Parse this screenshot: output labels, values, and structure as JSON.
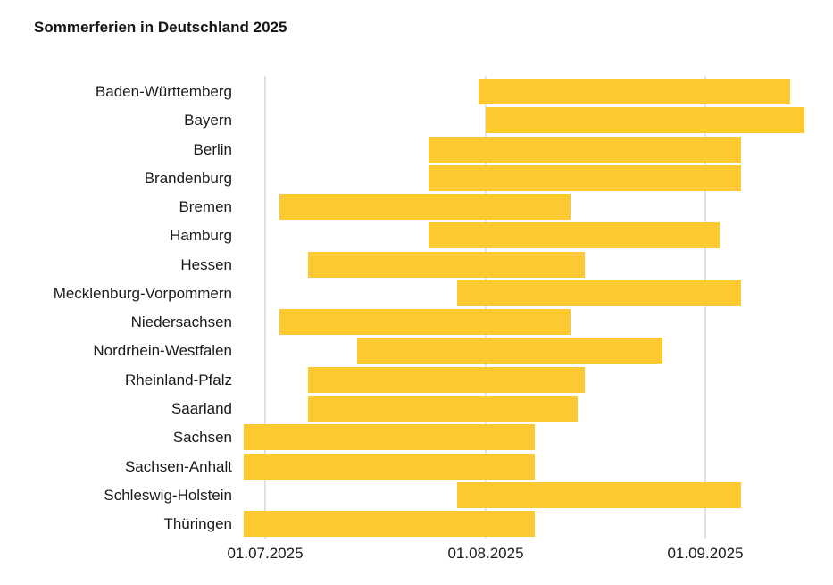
{
  "chart_data": {
    "type": "bar",
    "variant": "horizontal-date-range-gantt",
    "title": "Sommerferien in Deutschland 2025",
    "background": "#FFFFFF",
    "bar_color": "#FCC930",
    "grid_color": "#E0E0E0",
    "text_color": "#1A1A1A",
    "legend": "none",
    "categories": [
      "Baden-Württemberg",
      "Bayern",
      "Berlin",
      "Brandenburg",
      "Bremen",
      "Hamburg",
      "Hessen",
      "Mecklenburg-Vorpommern",
      "Niedersachsen",
      "Nordrhein-Westfalen",
      "Rheinland-Pfalz",
      "Saarland",
      "Sachsen",
      "Sachsen-Anhalt",
      "Schleswig-Holstein",
      "Thüringen"
    ],
    "series": [
      {
        "name": "Sommerferien",
        "ranges": [
          {
            "start": "2025-07-31",
            "end": "2025-09-13"
          },
          {
            "start": "2025-08-01",
            "end": "2025-09-15"
          },
          {
            "start": "2025-07-24",
            "end": "2025-09-06"
          },
          {
            "start": "2025-07-24",
            "end": "2025-09-06"
          },
          {
            "start": "2025-07-03",
            "end": "2025-08-13"
          },
          {
            "start": "2025-07-24",
            "end": "2025-09-03"
          },
          {
            "start": "2025-07-07",
            "end": "2025-08-15"
          },
          {
            "start": "2025-07-28",
            "end": "2025-09-06"
          },
          {
            "start": "2025-07-03",
            "end": "2025-08-13"
          },
          {
            "start": "2025-07-14",
            "end": "2025-08-26"
          },
          {
            "start": "2025-07-07",
            "end": "2025-08-15"
          },
          {
            "start": "2025-07-07",
            "end": "2025-08-14"
          },
          {
            "start": "2025-06-28",
            "end": "2025-08-08"
          },
          {
            "start": "2025-06-28",
            "end": "2025-08-08"
          },
          {
            "start": "2025-07-28",
            "end": "2025-09-06"
          },
          {
            "start": "2025-06-28",
            "end": "2025-08-08"
          }
        ]
      }
    ],
    "x_axis": {
      "type": "date",
      "tick_labels": [
        "01.07.2025",
        "01.08.2025",
        "01.09.2025"
      ],
      "tick_dates": [
        "2025-07-01",
        "2025-08-01",
        "2025-09-01"
      ],
      "gridlines": true
    }
  }
}
